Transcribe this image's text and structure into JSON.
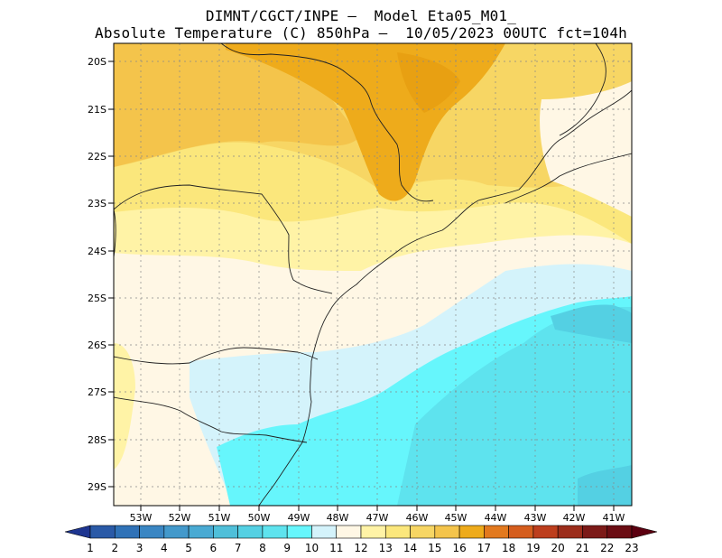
{
  "header": {
    "line1": "DIMNT/CGCT/INPE –  Model Eta05_M01_",
    "line2": "Absolute Temperature (C) 850hPa –  10/05/2023 00UTC fct=104h"
  },
  "map": {
    "lat_labels": [
      "20S",
      "21S",
      "22S",
      "23S",
      "24S",
      "25S",
      "26S",
      "27S",
      "28S",
      "29S"
    ],
    "lon_labels": [
      "53W",
      "52W",
      "51W",
      "50W",
      "49W",
      "48W",
      "47W",
      "46W",
      "45W",
      "44W",
      "43W",
      "42W",
      "41W"
    ],
    "lat_range": [
      -29.4,
      -19.8
    ],
    "lon_range": [
      -53.6,
      -40.6
    ],
    "grid": "dotted",
    "layers": [
      "filled temperature contours",
      "coastline",
      "state borders"
    ]
  },
  "colorbar": {
    "labels": [
      "1",
      "2",
      "3",
      "4",
      "5",
      "6",
      "7",
      "8",
      "9",
      "10",
      "11",
      "12",
      "13",
      "14",
      "15",
      "16",
      "17",
      "18",
      "19",
      "20",
      "21",
      "22",
      "23"
    ],
    "colors": [
      "#243e93",
      "#2a5aa7",
      "#3072b7",
      "#3a86c3",
      "#4399cb",
      "#49aad3",
      "#4fbfd9",
      "#54d0e3",
      "#5ee3ee",
      "#66f6fc",
      "#d4f3fb",
      "#fff7e5",
      "#fff3a6",
      "#fbe77c",
      "#f7d664",
      "#f4c44b",
      "#eeab1b",
      "#e2791e",
      "#d55d1d",
      "#bd3e1d",
      "#9c2d1b",
      "#7c1a18",
      "#6b0d14"
    ],
    "left_end_color": "#1e3590",
    "right_end_color": "#5c0010"
  }
}
